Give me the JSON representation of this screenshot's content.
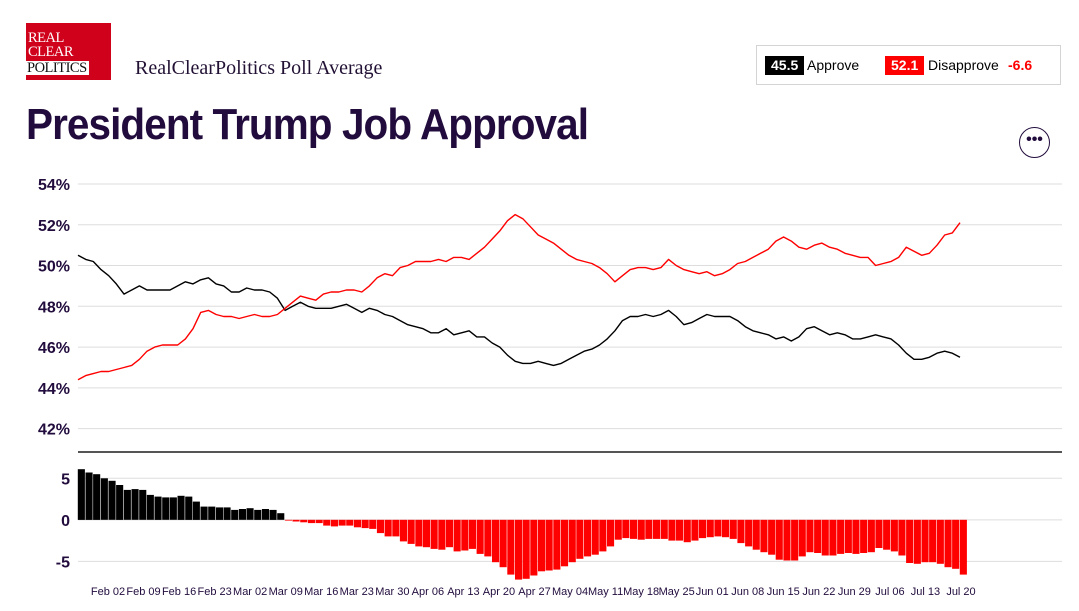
{
  "header": {
    "logo_lines": [
      "Real",
      "Clear",
      "Politics"
    ],
    "subtitle": "RealClearPolitics Poll Average",
    "title": "President Trump Job Approval"
  },
  "legend": {
    "approve_value": "45.5",
    "approve_label": "Approve",
    "disapprove_value": "52.1",
    "disapprove_label": "Disapprove",
    "spread": "-6.6"
  },
  "more_button_label": "•••",
  "colors": {
    "approve": "#000000",
    "disapprove": "#ff0000",
    "title": "#220c3d"
  },
  "chart_data": [
    {
      "type": "line",
      "x_start": "Jan 27",
      "x_end": "Jul 20",
      "ylim": [
        41,
        54
      ],
      "yticks": [
        "54%",
        "52%",
        "50%",
        "48%",
        "46%",
        "44%",
        "42%"
      ],
      "ytick_values": [
        54,
        52,
        50,
        48,
        46,
        44,
        42
      ],
      "xticks": [
        "Feb 02",
        "Feb 09",
        "Feb 16",
        "Feb 23",
        "Mar 02",
        "Mar 09",
        "Mar 16",
        "Mar 23",
        "Mar 30",
        "Apr 06",
        "Apr 13",
        "Apr 20",
        "Apr 27",
        "May 04",
        "May 11",
        "May 18",
        "May 25",
        "Jun 01",
        "Jun 08",
        "Jun 15",
        "Jun 22",
        "Jun 29",
        "Jul 06",
        "Jul 13",
        "Jul 20"
      ],
      "grid": true,
      "series": [
        {
          "name": "Approve",
          "color": "#000000",
          "values": [
            50.5,
            50.3,
            50.2,
            49.8,
            49.5,
            49.1,
            48.6,
            48.8,
            49.0,
            48.8,
            48.8,
            48.8,
            48.8,
            49.0,
            49.2,
            49.1,
            49.3,
            49.4,
            49.1,
            49.0,
            48.7,
            48.7,
            48.9,
            48.8,
            48.8,
            48.7,
            48.4,
            47.8,
            48.0,
            48.2,
            48.0,
            47.9,
            47.9,
            47.9,
            48.0,
            48.1,
            47.9,
            47.7,
            47.9,
            47.8,
            47.6,
            47.5,
            47.3,
            47.1,
            47.0,
            46.9,
            46.7,
            46.7,
            46.9,
            46.6,
            46.7,
            46.8,
            46.5,
            46.5,
            46.2,
            46.0,
            45.6,
            45.3,
            45.2,
            45.2,
            45.3,
            45.2,
            45.1,
            45.2,
            45.4,
            45.6,
            45.8,
            45.9,
            46.1,
            46.4,
            46.8,
            47.3,
            47.5,
            47.5,
            47.6,
            47.5,
            47.6,
            47.8,
            47.5,
            47.1,
            47.2,
            47.4,
            47.6,
            47.5,
            47.5,
            47.5,
            47.3,
            47.0,
            46.8,
            46.7,
            46.6,
            46.4,
            46.5,
            46.3,
            46.5,
            46.9,
            47.0,
            46.8,
            46.6,
            46.7,
            46.6,
            46.4,
            46.4,
            46.5,
            46.6,
            46.5,
            46.4,
            46.1,
            45.7,
            45.4,
            45.4,
            45.5,
            45.7,
            45.8,
            45.7,
            45.5
          ]
        },
        {
          "name": "Disapprove",
          "color": "#ff0000",
          "values": [
            44.4,
            44.6,
            44.7,
            44.8,
            44.8,
            44.9,
            45.0,
            45.1,
            45.4,
            45.8,
            46.0,
            46.1,
            46.1,
            46.1,
            46.4,
            46.9,
            47.7,
            47.8,
            47.6,
            47.5,
            47.5,
            47.4,
            47.5,
            47.6,
            47.5,
            47.5,
            47.6,
            47.9,
            48.2,
            48.5,
            48.4,
            48.3,
            48.6,
            48.7,
            48.7,
            48.8,
            48.8,
            48.7,
            49.0,
            49.4,
            49.6,
            49.5,
            49.9,
            50.0,
            50.2,
            50.2,
            50.2,
            50.3,
            50.2,
            50.4,
            50.4,
            50.3,
            50.6,
            50.9,
            51.3,
            51.7,
            52.2,
            52.5,
            52.3,
            51.9,
            51.5,
            51.3,
            51.1,
            50.8,
            50.5,
            50.3,
            50.2,
            50.1,
            49.9,
            49.6,
            49.2,
            49.5,
            49.8,
            49.9,
            49.9,
            49.8,
            49.9,
            50.3,
            50.0,
            49.8,
            49.7,
            49.6,
            49.7,
            49.5,
            49.6,
            49.8,
            50.1,
            50.2,
            50.4,
            50.6,
            50.8,
            51.2,
            51.4,
            51.2,
            50.9,
            50.8,
            51.0,
            51.1,
            50.9,
            50.8,
            50.6,
            50.5,
            50.4,
            50.4,
            50.0,
            50.1,
            50.2,
            50.4,
            50.9,
            50.7,
            50.5,
            50.6,
            51.0,
            51.5,
            51.6,
            52.1
          ]
        }
      ]
    },
    {
      "type": "bar",
      "title": "",
      "ylim": [
        -7,
        6
      ],
      "yticks": [
        "5",
        "0",
        "-5"
      ],
      "ytick_values": [
        5,
        0,
        -5
      ],
      "grid": true,
      "positive_color": "#000000",
      "negative_color": "#ff0000",
      "series": [
        {
          "name": "Spread",
          "values": [
            6.1,
            5.7,
            5.5,
            5.0,
            4.7,
            4.2,
            3.6,
            3.7,
            3.6,
            3.0,
            2.8,
            2.7,
            2.7,
            2.9,
            2.8,
            2.2,
            1.6,
            1.6,
            1.5,
            1.5,
            1.2,
            1.3,
            1.4,
            1.2,
            1.3,
            1.2,
            0.8,
            -0.1,
            -0.2,
            -0.3,
            -0.4,
            -0.4,
            -0.7,
            -0.8,
            -0.7,
            -0.7,
            -0.9,
            -1.0,
            -1.1,
            -1.6,
            -2.0,
            -2.0,
            -2.6,
            -2.9,
            -3.2,
            -3.3,
            -3.5,
            -3.6,
            -3.3,
            -3.8,
            -3.7,
            -3.5,
            -4.1,
            -4.4,
            -5.1,
            -5.7,
            -6.6,
            -7.2,
            -7.1,
            -6.7,
            -6.2,
            -6.1,
            -6.0,
            -5.6,
            -5.1,
            -4.7,
            -4.4,
            -4.2,
            -3.8,
            -3.2,
            -2.4,
            -2.2,
            -2.3,
            -2.4,
            -2.3,
            -2.3,
            -2.3,
            -2.5,
            -2.5,
            -2.7,
            -2.5,
            -2.2,
            -2.1,
            -2.0,
            -2.1,
            -2.3,
            -2.8,
            -3.2,
            -3.6,
            -3.9,
            -4.2,
            -4.8,
            -4.9,
            -4.9,
            -4.4,
            -3.9,
            -4.0,
            -4.3,
            -4.3,
            -4.1,
            -4.0,
            -4.1,
            -4.0,
            -3.9,
            -3.4,
            -3.6,
            -3.8,
            -4.3,
            -5.2,
            -5.3,
            -5.1,
            -5.1,
            -5.3,
            -5.7,
            -5.9,
            -6.6
          ]
        }
      ]
    }
  ]
}
